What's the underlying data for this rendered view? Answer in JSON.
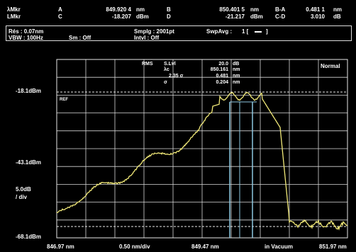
{
  "markers": {
    "row1": {
      "name": "λMkr",
      "a_label": "A",
      "a_value": "849.920 4",
      "a_unit": "nm",
      "b_label": "B",
      "b_value": "850.401 5",
      "b_unit": "nm",
      "ba_label": "B-A",
      "ba_value": "0.481 1",
      "ba_unit": "nm"
    },
    "row2": {
      "name": "LMkr",
      "c_label": "C",
      "c_value": "-18.207",
      "c_unit": "dBm",
      "d_label": "D",
      "d_value": "-21.217",
      "d_unit": "dBm",
      "cd_label": "C-D",
      "cd_value": "3.010",
      "cd_unit": "dB"
    }
  },
  "settings": {
    "res": "Rés : 0.07nm",
    "vbw": "VBW : 100Hz",
    "sm": "Sm :  Off",
    "smplg": "Smplg :  2001pt",
    "intvl": "Intvl :  Off",
    "swpavg": "SwpAvg :",
    "swpavg_val": "1 [",
    "swpavg_end": "]"
  },
  "plot": {
    "ref_level": "-18.1dBm",
    "ref_tag": "REF",
    "mid_level": "-43.1dBm",
    "scale": "5.0dB",
    "scale_unit": "/ div",
    "bottom_level": "-68.1dBm",
    "mode": "Normal"
  },
  "analysis": {
    "title": "RMS",
    "rows": [
      {
        "k": "S.Lvl",
        "v": "20.0",
        "u": "dB"
      },
      {
        "k": "λc",
        "v": "850.161",
        "u": "nm"
      },
      {
        "k": "2.35 σ",
        "v": "0.481",
        "u": "nm"
      },
      {
        "k": "σ",
        "v": "0.204",
        "u": "nm"
      }
    ]
  },
  "xaxis": {
    "start": "846.97 nm",
    "per_div": "0.50 nm/div",
    "center": "849.47 nm",
    "medium": "in Vacuum",
    "stop": "851.97 nm"
  },
  "colors": {
    "trace": "#f0e878",
    "grid": "#e8e8e8",
    "marker": "#8ec7e0"
  }
}
